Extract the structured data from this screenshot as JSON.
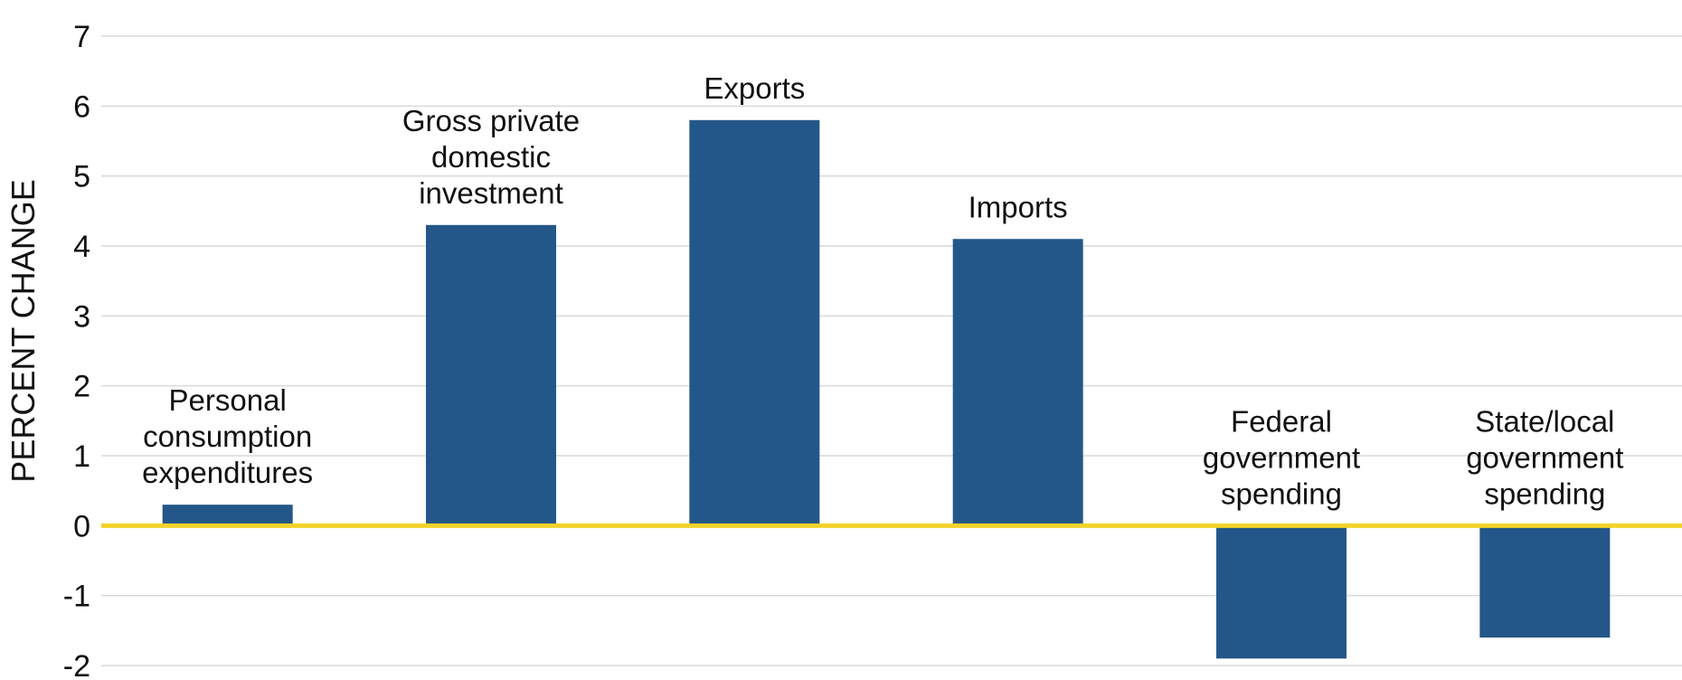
{
  "chart_data": {
    "type": "bar",
    "title": "",
    "xlabel": "",
    "ylabel": "PERCENT CHANGE",
    "ylim": [
      -2,
      7
    ],
    "yticks": [
      7,
      6,
      5,
      4,
      3,
      2,
      1,
      0,
      -1,
      -2
    ],
    "grid": true,
    "categories": [
      [
        "Personal",
        "consumption",
        "expenditures"
      ],
      [
        "Gross private",
        "domestic",
        "investment"
      ],
      [
        "Exports"
      ],
      [
        "Imports"
      ],
      [
        "Federal",
        "government",
        "spending"
      ],
      [
        "State/local",
        "government",
        "spending"
      ]
    ],
    "values": [
      0.3,
      4.3,
      5.8,
      4.1,
      -1.9,
      -1.6
    ],
    "colors": {
      "bar": "#245789",
      "zero_line": "#f2d32a",
      "grid": "#d9d9d9",
      "text": "#111111"
    }
  }
}
